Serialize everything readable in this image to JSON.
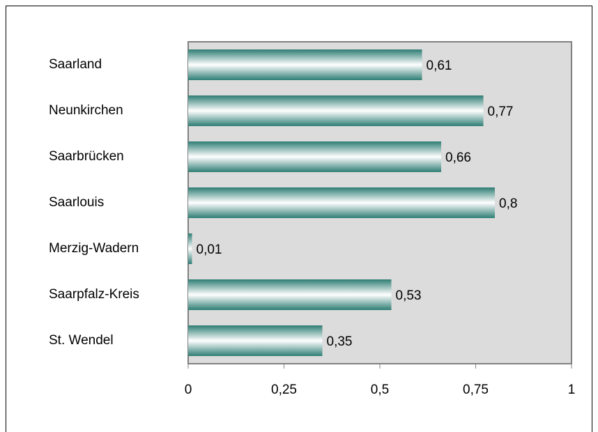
{
  "chart_data": {
    "type": "bar",
    "orientation": "horizontal",
    "categories": [
      "Saarland",
      "Neunkirchen",
      "Saarbrücken",
      "Saarlouis",
      "Merzig-Wadern",
      "Saarpfalz-Kreis",
      "St. Wendel"
    ],
    "values": [
      0.61,
      0.77,
      0.66,
      0.8,
      0.01,
      0.53,
      0.35
    ],
    "value_labels": [
      "0,61",
      "0,77",
      "0,66",
      "0,8",
      "0,01",
      "0,53",
      "0,35"
    ],
    "color": "#2e7d74",
    "xlim": [
      0,
      1
    ],
    "xticks": [
      0,
      {
        "value": 0.25,
        "label": "0,25"
      },
      {
        "value": 0.5,
        "label": "0,5"
      },
      {
        "value": 0.75,
        "label": "0,75"
      },
      1
    ]
  }
}
